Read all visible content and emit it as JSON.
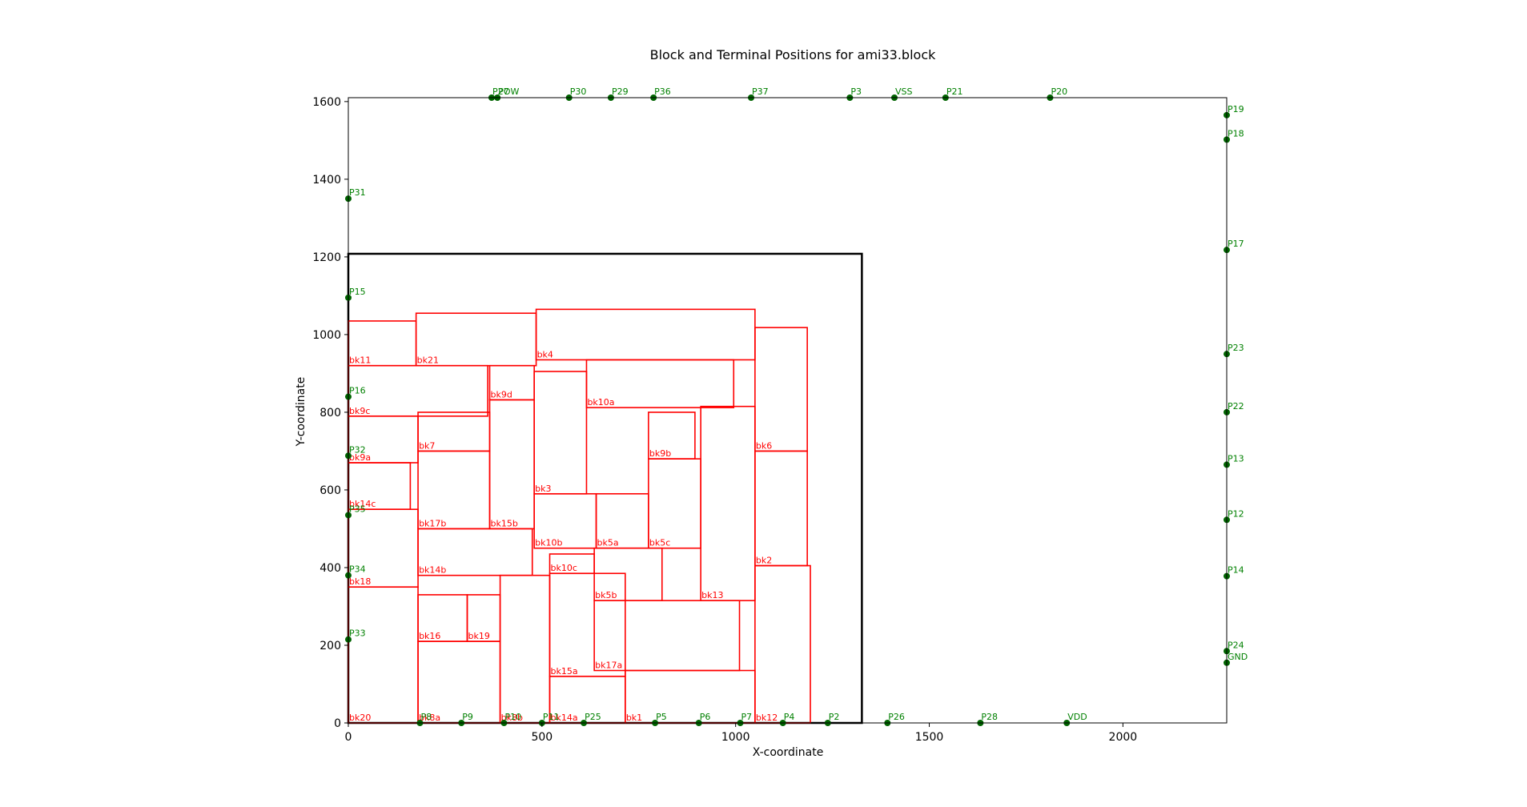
{
  "chart_data": {
    "type": "scatter",
    "title": "Block and Terminal Positions for ami33.block",
    "xlabel": "X-coordinate",
    "ylabel": "Y-coordinate",
    "xlim": [
      0,
      2268
    ],
    "ylim": [
      0,
      1610
    ],
    "x_ticks": [
      0,
      500,
      1000,
      1500,
      2000
    ],
    "y_ticks": [
      0,
      200,
      400,
      600,
      800,
      1000,
      1200,
      1400,
      1600
    ],
    "grid": false,
    "colors": {
      "block": "#ff0000",
      "terminal": "#006400",
      "terminal_label": "#008000",
      "outline": "#000000"
    },
    "outline": {
      "x": 0,
      "y": 0,
      "w": 1326,
      "h": 1208
    },
    "blocks": [
      {
        "name": "bk20",
        "x": 0,
        "y": 0,
        "w": 180,
        "h": 350
      },
      {
        "name": "bk18",
        "x": 0,
        "y": 350,
        "w": 180,
        "h": 200
      },
      {
        "name": "bk14c",
        "x": 0,
        "y": 550,
        "w": 160,
        "h": 120
      },
      {
        "name": "bk9a",
        "x": 0,
        "y": 670,
        "w": 180,
        "h": 120
      },
      {
        "name": "bk9c",
        "x": 0,
        "y": 790,
        "w": 360,
        "h": 130
      },
      {
        "name": "bk11",
        "x": 0,
        "y": 920,
        "w": 175,
        "h": 115
      },
      {
        "name": "bk21",
        "x": 175,
        "y": 920,
        "w": 310,
        "h": 135
      },
      {
        "name": "bk4",
        "x": 485,
        "y": 935,
        "w": 565,
        "h": 130
      },
      {
        "name": "bk9d",
        "x": 365,
        "y": 832,
        "w": 115,
        "h": 88
      },
      {
        "name": "bk7",
        "x": 180,
        "y": 700,
        "w": 185,
        "h": 100
      },
      {
        "name": "bk17b",
        "x": 180,
        "y": 500,
        "w": 185,
        "h": 200
      },
      {
        "name": "bk15b",
        "x": 365,
        "y": 500,
        "w": 115,
        "h": 332
      },
      {
        "name": "bk14b",
        "x": 180,
        "y": 380,
        "w": 295,
        "h": 120
      },
      {
        "name": "bk16",
        "x": 180,
        "y": 210,
        "w": 127,
        "h": 120
      },
      {
        "name": "bk19",
        "x": 307,
        "y": 210,
        "w": 85,
        "h": 120
      },
      {
        "name": "bk8a",
        "x": 180,
        "y": 0,
        "w": 212,
        "h": 210
      },
      {
        "name": "bk8b",
        "x": 392,
        "y": 0,
        "w": 128,
        "h": 380
      },
      {
        "name": "bk3",
        "x": 480,
        "y": 590,
        "w": 135,
        "h": 315
      },
      {
        "name": "bk10b",
        "x": 480,
        "y": 450,
        "w": 160,
        "h": 140
      },
      {
        "name": "bk10a",
        "x": 615,
        "y": 812,
        "w": 380,
        "h": 123
      },
      {
        "name": "bk9b",
        "x": 775,
        "y": 680,
        "w": 120,
        "h": 120
      },
      {
        "name": "bk5c",
        "x": 775,
        "y": 450,
        "w": 135,
        "h": 230
      },
      {
        "name": "bk5a",
        "x": 640,
        "y": 450,
        "w": 135,
        "h": 140
      },
      {
        "name": "bk10c",
        "x": 520,
        "y": 385,
        "w": 115,
        "h": 50
      },
      {
        "name": "bk5b",
        "x": 635,
        "y": 315,
        "w": 175,
        "h": 135
      },
      {
        "name": "bk13",
        "x": 910,
        "y": 315,
        "w": 140,
        "h": 500
      },
      {
        "name": "bk6",
        "x": 1050,
        "y": 700,
        "w": 135,
        "h": 318
      },
      {
        "name": "bk2",
        "x": 1050,
        "y": 405,
        "w": 135,
        "h": 295
      },
      {
        "name": "bk12",
        "x": 1050,
        "y": 0,
        "w": 143,
        "h": 405
      },
      {
        "name": "bk17a",
        "x": 635,
        "y": 135,
        "w": 375,
        "h": 180
      },
      {
        "name": "bk15a",
        "x": 520,
        "y": 120,
        "w": 195,
        "h": 265
      },
      {
        "name": "bk14a",
        "x": 520,
        "y": 0,
        "w": 195,
        "h": 120
      },
      {
        "name": "bk1",
        "x": 715,
        "y": 0,
        "w": 335,
        "h": 135
      }
    ],
    "terminals": [
      {
        "name": "P27",
        "x": 370,
        "y": 1610
      },
      {
        "name": "POW",
        "x": 385,
        "y": 1610
      },
      {
        "name": "P30",
        "x": 570,
        "y": 1610
      },
      {
        "name": "P29",
        "x": 678,
        "y": 1610
      },
      {
        "name": "P36",
        "x": 788,
        "y": 1610
      },
      {
        "name": "P37",
        "x": 1040,
        "y": 1610
      },
      {
        "name": "P3",
        "x": 1295,
        "y": 1610
      },
      {
        "name": "VSS",
        "x": 1410,
        "y": 1610
      },
      {
        "name": "P21",
        "x": 1542,
        "y": 1610
      },
      {
        "name": "P20",
        "x": 1812,
        "y": 1610
      },
      {
        "name": "P19",
        "x": 2268,
        "y": 1565
      },
      {
        "name": "P18",
        "x": 2268,
        "y": 1502
      },
      {
        "name": "P31",
        "x": 0,
        "y": 1350
      },
      {
        "name": "P17",
        "x": 2268,
        "y": 1218
      },
      {
        "name": "P15",
        "x": 0,
        "y": 1095
      },
      {
        "name": "P23",
        "x": 2268,
        "y": 950
      },
      {
        "name": "P16",
        "x": 0,
        "y": 840
      },
      {
        "name": "P22",
        "x": 2268,
        "y": 800
      },
      {
        "name": "P32",
        "x": 0,
        "y": 688
      },
      {
        "name": "P13",
        "x": 2268,
        "y": 665
      },
      {
        "name": "P35",
        "x": 0,
        "y": 535
      },
      {
        "name": "P12",
        "x": 2268,
        "y": 523
      },
      {
        "name": "P34",
        "x": 0,
        "y": 380
      },
      {
        "name": "P14",
        "x": 2268,
        "y": 378
      },
      {
        "name": "P33",
        "x": 0,
        "y": 215
      },
      {
        "name": "P24",
        "x": 2268,
        "y": 185
      },
      {
        "name": "GND",
        "x": 2268,
        "y": 155
      },
      {
        "name": "P8",
        "x": 185,
        "y": 0
      },
      {
        "name": "P9",
        "x": 292,
        "y": 0
      },
      {
        "name": "P10",
        "x": 402,
        "y": 0
      },
      {
        "name": "P11",
        "x": 500,
        "y": 0
      },
      {
        "name": "P25",
        "x": 608,
        "y": 0
      },
      {
        "name": "P5",
        "x": 792,
        "y": 0
      },
      {
        "name": "P6",
        "x": 905,
        "y": 0
      },
      {
        "name": "P7",
        "x": 1012,
        "y": 0
      },
      {
        "name": "P4",
        "x": 1122,
        "y": 0
      },
      {
        "name": "P2",
        "x": 1238,
        "y": 0
      },
      {
        "name": "P26",
        "x": 1392,
        "y": 0
      },
      {
        "name": "P28",
        "x": 1632,
        "y": 0
      },
      {
        "name": "VDD",
        "x": 1855,
        "y": 0
      }
    ]
  }
}
